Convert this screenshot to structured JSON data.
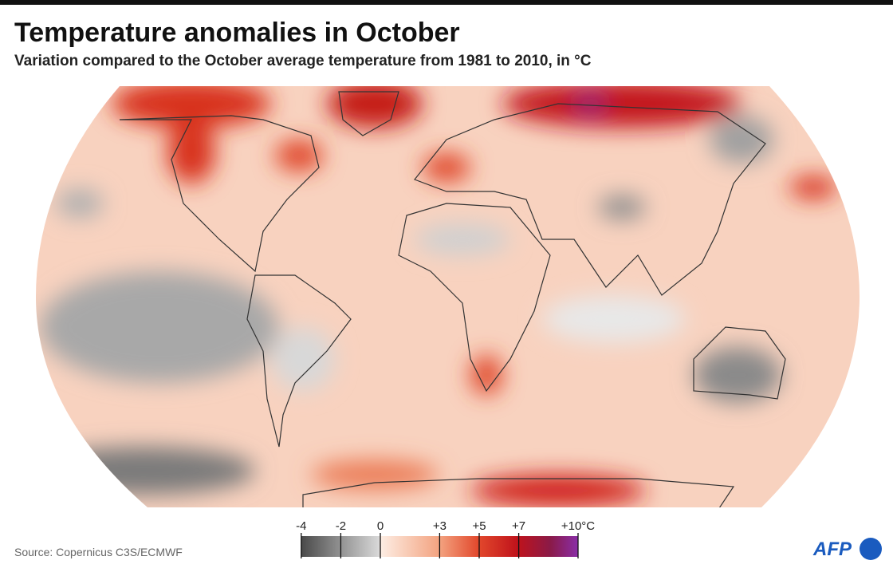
{
  "header": {
    "title": "Temperature anomalies in October",
    "subtitle": "Variation compared to the October average temperature from 1981 to 2010, in °C"
  },
  "legend": {
    "ticks": [
      -4,
      -2,
      0,
      {
        "value": 3,
        "label": "+3"
      },
      {
        "value": 5,
        "label": "+5"
      },
      {
        "value": 7,
        "label": "+7"
      },
      {
        "value": 10,
        "label": "+10°C"
      }
    ]
  },
  "footer": {
    "source": "Source: Copernicus C3S/ECMWF",
    "logo": "AFP"
  }
}
